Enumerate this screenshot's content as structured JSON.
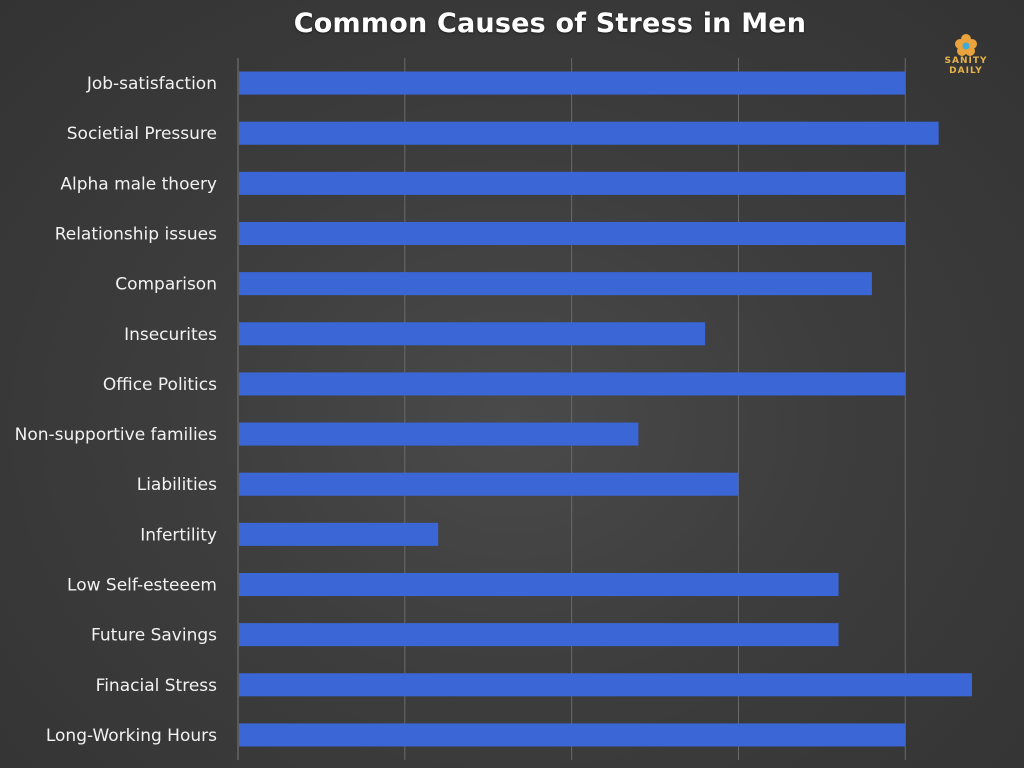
{
  "chart_data": {
    "type": "bar",
    "orientation": "horizontal",
    "title": "Common Causes of Stress in Men",
    "xlabel": "",
    "ylabel": "",
    "xlim": [
      0,
      22
    ],
    "grid": true,
    "categories": [
      "Job-satisfaction",
      "Societial Pressure",
      "Alpha male thoery",
      "Relationship issues",
      "Comparison",
      "Insecurites",
      "Office Politics",
      "Non-supportive families",
      "Liabilities",
      "Infertility",
      "Low Self-esteeem",
      "Future Savings",
      "Finacial Stress",
      "Long-Working Hours"
    ],
    "values": [
      20,
      21,
      20,
      20,
      19,
      14,
      20,
      12,
      15,
      6,
      18,
      18,
      22,
      20
    ],
    "bar_color": "#3a66d6"
  },
  "branding": {
    "logo_text": "SANITY DAILY"
  }
}
